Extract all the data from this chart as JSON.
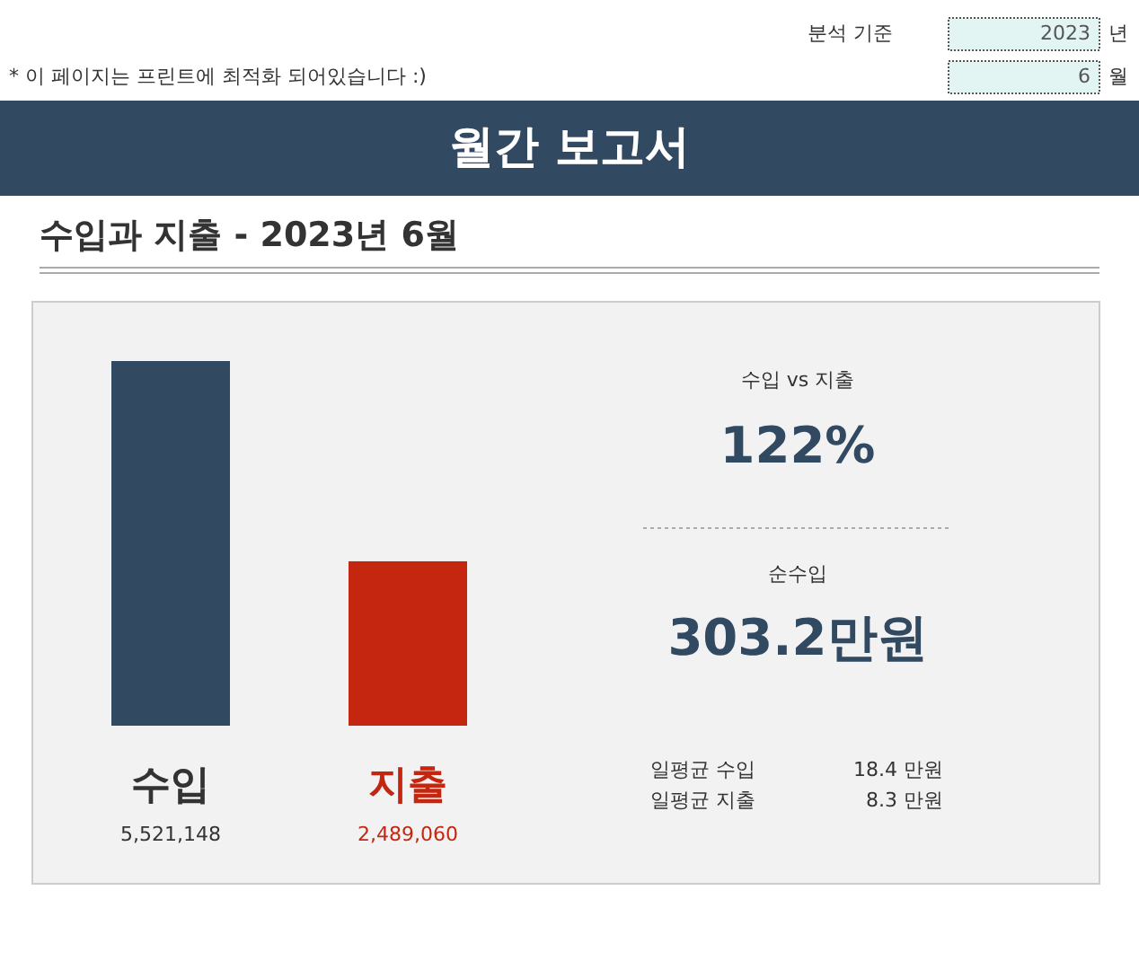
{
  "chart_data": [
    {
      "type": "other",
      "title": "월간 보고서",
      "annotations": [
        "분석 기준",
        "2023",
        "년",
        "* 이 페이지는 프린트에 최적화 되어있습니다 :)",
        "6",
        "월"
      ]
    },
    {
      "type": "bar",
      "title": "수입과 지출 - 2023년 6월",
      "categories": [
        "수입",
        "지출"
      ],
      "values": [
        5521148,
        2489060
      ],
      "colors": [
        "#314a62",
        "#c4260f"
      ],
      "value_labels": [
        "5,521,148",
        "2,489,060"
      ]
    },
    {
      "type": "other",
      "annotations": [
        "수입 vs 지출",
        "122%",
        "순수입",
        "303.2만원",
        "일평균 수입",
        "18.4 만원",
        "일평균 지출",
        "8.3 만원"
      ]
    }
  ]
}
